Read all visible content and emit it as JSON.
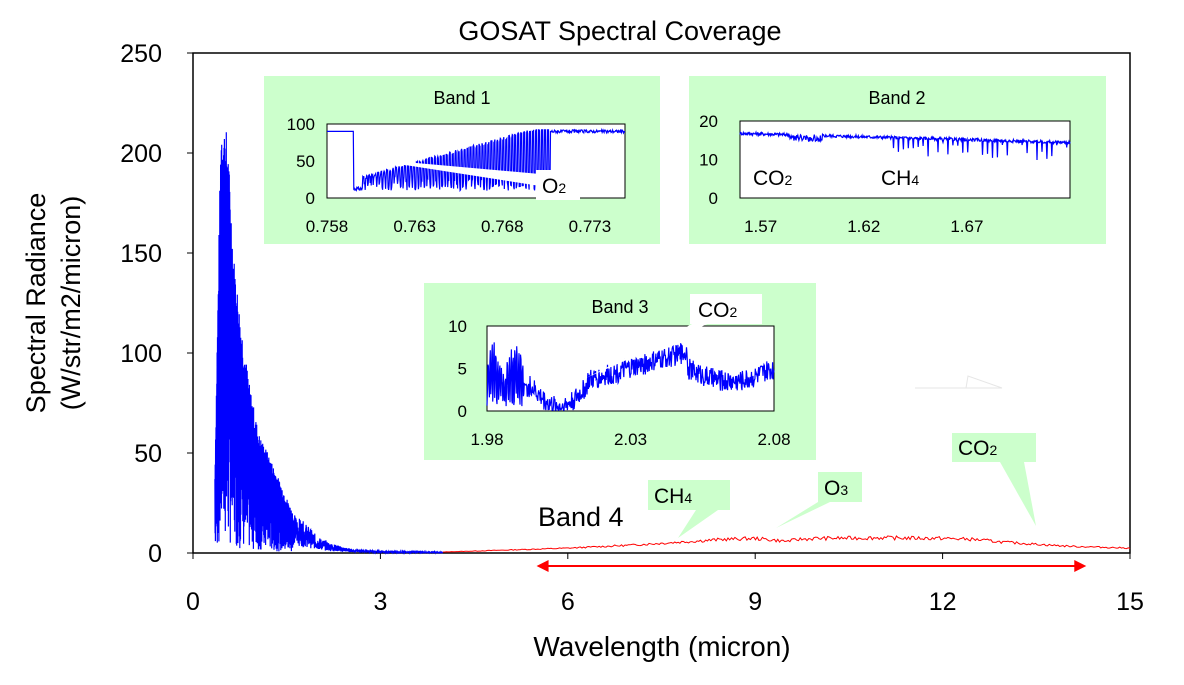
{
  "chart_data": {
    "type": "line",
    "title": "GOSAT Spectral Coverage",
    "xlabel": "Wavelength (micron)",
    "ylabel_line1": "Spectral Radiance",
    "ylabel_line2": "(W/str/m2/micron)",
    "xlim": [
      0,
      15
    ],
    "ylim": [
      0,
      250
    ],
    "xticks": [
      0,
      3,
      6,
      9,
      12,
      15
    ],
    "yticks": [
      0,
      50,
      100,
      150,
      200,
      250
    ],
    "grid": false,
    "series": [
      {
        "color": "#0000ff",
        "style": "solar reflected (dense oscillating spectrum)",
        "envelope": {
          "x": [
            0.35,
            0.45,
            0.55,
            0.65,
            0.75,
            0.9,
            1.05,
            1.2,
            1.4,
            1.6,
            1.8,
            2.0,
            2.2,
            2.4,
            2.55,
            3.0,
            4.0
          ],
          "y": [
            40,
            220,
            210,
            150,
            120,
            85,
            60,
            50,
            35,
            20,
            15,
            8,
            5,
            3,
            2,
            1,
            0.5
          ]
        }
      },
      {
        "color": "#ff0000",
        "style": "thermal emission",
        "x": [
          4.0,
          5.0,
          6.0,
          7.0,
          8.0,
          8.5,
          9.0,
          9.5,
          9.7,
          10.0,
          11.0,
          12.0,
          12.5,
          13.0,
          13.5,
          14.0,
          15.0
        ],
        "y": [
          0.5,
          1.5,
          2.5,
          4,
          6,
          7,
          7.5,
          6,
          7,
          7.5,
          7.8,
          7.5,
          7,
          5.5,
          4.5,
          3.5,
          2.5
        ]
      }
    ],
    "range_arrow": {
      "from": 5.5,
      "to": 14.3,
      "y": -6.5,
      "color": "#ff0000",
      "label": "Band 4"
    },
    "annotations": [
      {
        "label": "CH",
        "sub": "4",
        "target": [
          8.7,
          6.0
        ]
      },
      {
        "label": "O",
        "sub": "3",
        "target": [
          9.35,
          8.0
        ]
      },
      {
        "label": "CO",
        "sub": "2",
        "target": [
          13.8,
          12.0
        ]
      }
    ],
    "insets": [
      {
        "title": "Band 1",
        "xlim": [
          0.758,
          0.775
        ],
        "ylim": [
          0,
          100
        ],
        "xticks": [
          "0.758",
          "0.763",
          "0.768",
          "0.773"
        ],
        "yticks": [
          "0",
          "50",
          "100"
        ],
        "annotation": {
          "label": "O",
          "sub": "2"
        }
      },
      {
        "title": "Band 2",
        "xlim": [
          1.56,
          1.72
        ],
        "ylim": [
          0,
          20
        ],
        "xticks": [
          "1.57",
          "1.62",
          "1.67"
        ],
        "yticks": [
          "0",
          "10",
          "20"
        ],
        "annotations": [
          {
            "label": "CO",
            "sub": "2"
          },
          {
            "label": "CH",
            "sub": "4"
          }
        ]
      },
      {
        "title": "Band 3",
        "xlim": [
          1.98,
          2.08
        ],
        "ylim": [
          0,
          10
        ],
        "xticks": [
          "1.98",
          "2.03",
          "2.08"
        ],
        "yticks": [
          "0",
          "5",
          "10"
        ],
        "annotation": {
          "label": "CO",
          "sub": "2"
        }
      }
    ]
  }
}
